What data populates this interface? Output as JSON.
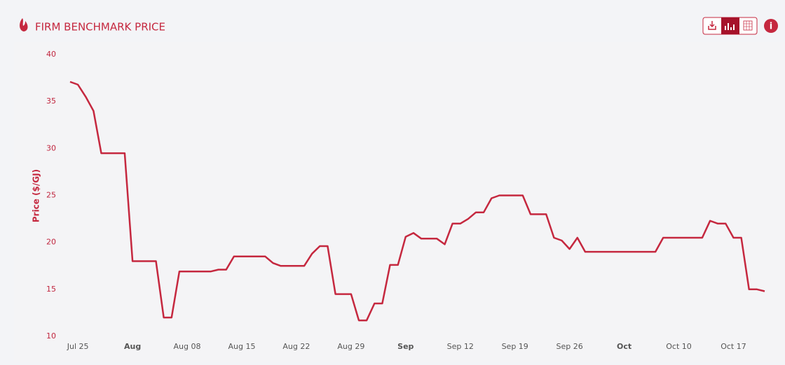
{
  "chart_data": {
    "type": "line",
    "title": "FIRM BENCHMARK PRICE",
    "y_label": "Price ($/GJ)",
    "x": [
      "Jul 24",
      "Jul 25",
      "Jul 26",
      "Jul 27",
      "Jul 28",
      "Jul 29",
      "Jul 30",
      "Jul 31",
      "Aug 01",
      "Aug 02",
      "Aug 03",
      "Aug 04",
      "Aug 05",
      "Aug 06",
      "Aug 07",
      "Aug 08",
      "Aug 09",
      "Aug 10",
      "Aug 11",
      "Aug 12",
      "Aug 13",
      "Aug 14",
      "Aug 15",
      "Aug 16",
      "Aug 17",
      "Aug 18",
      "Aug 19",
      "Aug 20",
      "Aug 21",
      "Aug 22",
      "Aug 23",
      "Aug 24",
      "Aug 25",
      "Aug 26",
      "Aug 27",
      "Aug 28",
      "Aug 29",
      "Aug 30",
      "Aug 31",
      "Sep 01",
      "Sep 02",
      "Sep 03",
      "Sep 04",
      "Sep 05",
      "Sep 06",
      "Sep 07",
      "Sep 08",
      "Sep 09",
      "Sep 10",
      "Sep 11",
      "Sep 12",
      "Sep 13",
      "Sep 14",
      "Sep 15",
      "Sep 16",
      "Sep 17",
      "Sep 18",
      "Sep 19",
      "Sep 20",
      "Sep 21",
      "Sep 22",
      "Sep 23",
      "Sep 24",
      "Sep 25",
      "Sep 26",
      "Sep 27",
      "Sep 28",
      "Sep 29",
      "Sep 30",
      "Oct 01",
      "Oct 02",
      "Oct 03",
      "Oct 04",
      "Oct 05",
      "Oct 06",
      "Oct 07",
      "Oct 08",
      "Oct 09",
      "Oct 10",
      "Oct 11",
      "Oct 12",
      "Oct 13",
      "Oct 14",
      "Oct 15",
      "Oct 16",
      "Oct 17",
      "Oct 18",
      "Oct 19",
      "Oct 20",
      "Oct 21"
    ],
    "series": [
      {
        "name": "Firm Benchmark Price",
        "color": "#c5283f",
        "values": [
          37.1,
          36.8,
          35.5,
          34.0,
          29.5,
          29.5,
          29.5,
          29.5,
          18.0,
          18.0,
          18.0,
          18.0,
          12.0,
          12.0,
          16.9,
          16.9,
          16.9,
          16.9,
          16.9,
          17.1,
          17.1,
          18.5,
          18.5,
          18.5,
          18.5,
          18.5,
          17.8,
          17.5,
          17.5,
          17.5,
          17.5,
          18.8,
          19.6,
          19.6,
          14.5,
          14.5,
          14.5,
          11.7,
          11.7,
          13.5,
          13.5,
          17.6,
          17.6,
          20.6,
          21.0,
          20.4,
          20.4,
          20.4,
          19.8,
          22.0,
          22.0,
          22.5,
          23.2,
          23.2,
          24.7,
          25.0,
          25.0,
          25.0,
          25.0,
          23.0,
          23.0,
          23.0,
          20.5,
          20.2,
          19.3,
          20.5,
          19.0,
          19.0,
          19.0,
          19.0,
          19.0,
          19.0,
          19.0,
          19.0,
          19.0,
          19.0,
          20.5,
          20.5,
          20.5,
          20.5,
          20.5,
          20.5,
          22.3,
          22.0,
          22.0,
          20.5,
          20.5,
          15.0,
          15.0,
          14.8
        ]
      }
    ],
    "xticks": [
      "Jul 25",
      {
        "value": "Aug 01",
        "label": "Aug"
      },
      "Aug 08",
      "Aug 15",
      "Aug 22",
      "Aug 29",
      {
        "value": "Sep 05",
        "label": "Sep"
      },
      "Sep 12",
      "Sep 19",
      "Sep 26",
      {
        "value": "Oct 03",
        "label": "Oct"
      },
      "Oct 10",
      "Oct 17"
    ],
    "ylim": [
      10,
      40
    ],
    "yticks": [
      10,
      15,
      20,
      25,
      30,
      35,
      40
    ],
    "grid": false,
    "legend": false
  }
}
